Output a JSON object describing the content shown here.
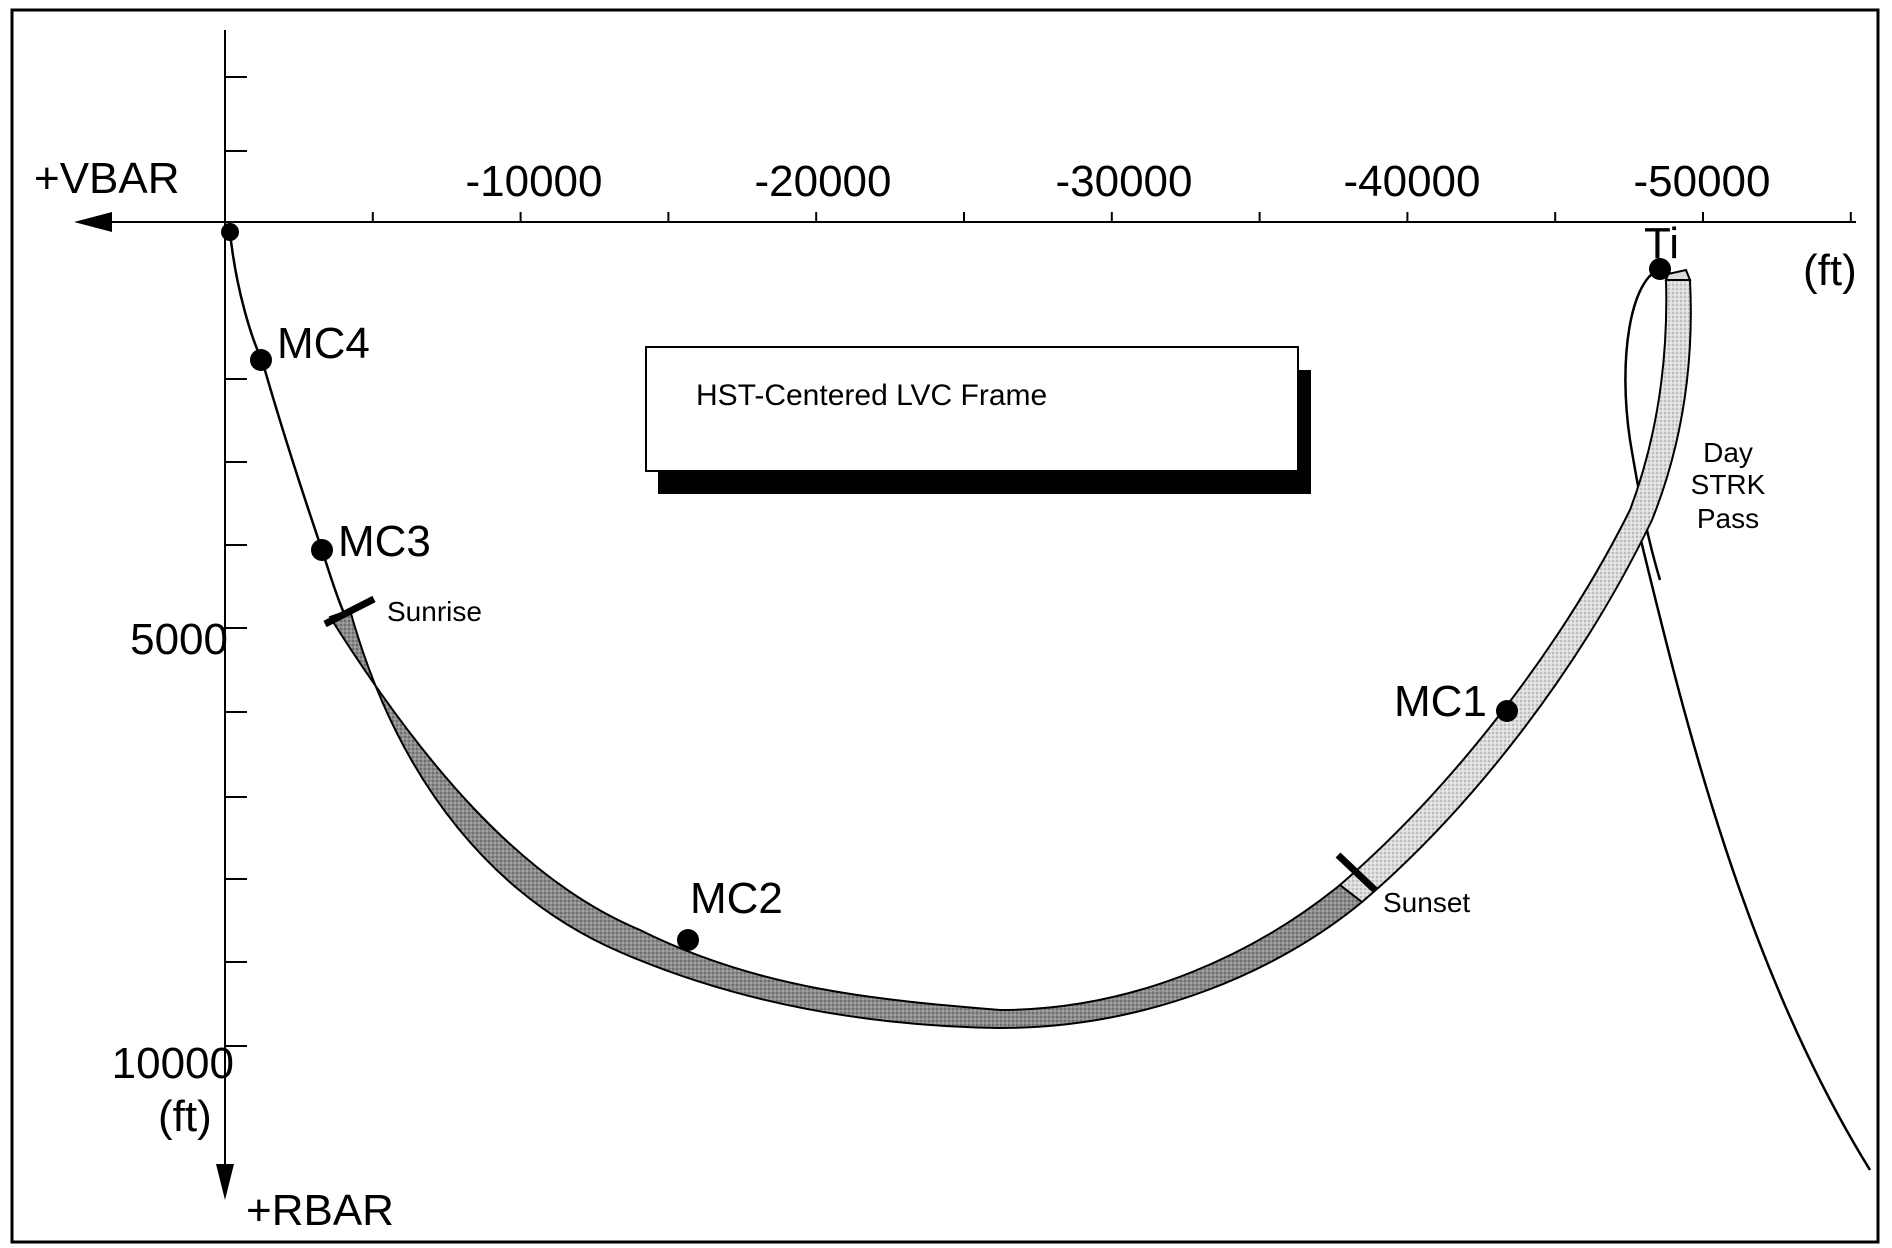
{
  "diagram": {
    "frame_title": "HST-Centered LVC Frame",
    "axes": {
      "x_direction_label": "+VBAR",
      "y_direction_label": "+RBAR",
      "x_unit": "(ft)",
      "y_unit": "(ft)",
      "x_ticks": [
        "-10000",
        "-20000",
        "-30000",
        "-40000",
        "-50000"
      ],
      "y_ticks": [
        "5000",
        "10000"
      ]
    },
    "markers": {
      "ti": "Ti",
      "mc1": "MC1",
      "mc2": "MC2",
      "mc3": "MC3",
      "mc4": "MC4"
    },
    "events": {
      "sunrise": "Sunrise",
      "sunset": "Sunset"
    },
    "day_pass": [
      "Day",
      "STRK",
      "Pass"
    ],
    "colors": {
      "night_band": "#9a9a9a",
      "day_band": "#d6d6d6",
      "ink": "#000000"
    }
  }
}
